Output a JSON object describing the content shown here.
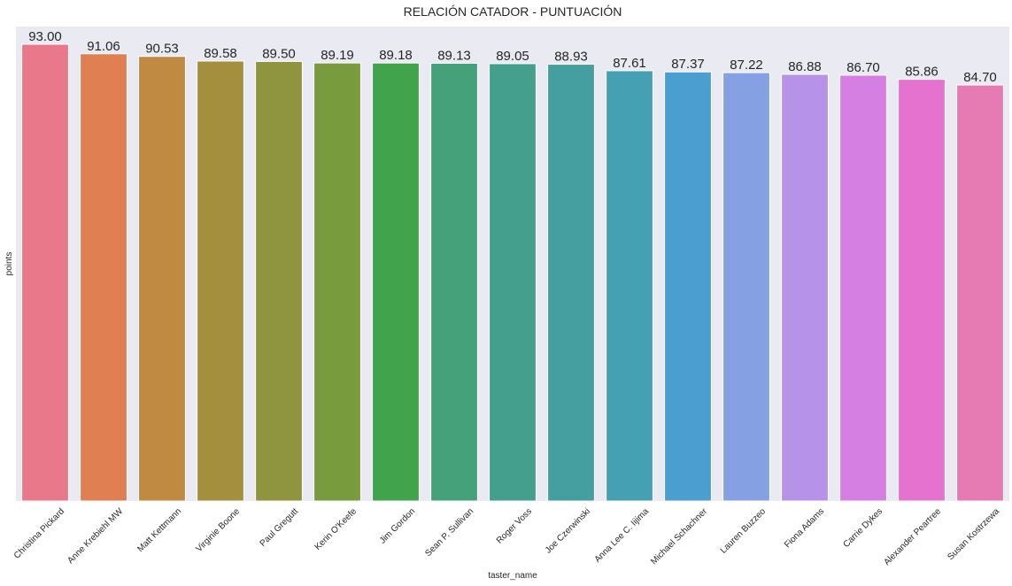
{
  "chart_data": {
    "type": "bar",
    "title": "RELACIÓN CATADOR - PUNTUACIÓN",
    "xlabel": "taster_name",
    "ylabel": "points",
    "ylim": [
      0,
      93.0
    ],
    "grid": false,
    "background_color": "#eaeaf2",
    "categories": [
      "Christina Pickard",
      "Anne Krebiehl MW",
      "Matt Kettmann",
      "Virginie Boone",
      "Paul Gregutt",
      "Kerin O'Keefe",
      "Jim Gordon",
      "Sean P. Sullivan",
      "Roger Voss",
      "Joe Czerwinski",
      "Anna Lee C. Iijima",
      "Michael Schachner",
      "Lauren Buzzeo",
      "Fiona Adams",
      "Carrie Dykes",
      "Alexander Peartree",
      "Susan Kostrzewa"
    ],
    "values": [
      93.0,
      91.06,
      90.53,
      89.58,
      89.5,
      89.19,
      89.18,
      89.13,
      89.05,
      88.93,
      87.61,
      87.37,
      87.22,
      86.88,
      86.7,
      85.86,
      84.7
    ],
    "value_labels": [
      "93.00",
      "91.06",
      "90.53",
      "89.58",
      "89.50",
      "89.19",
      "89.18",
      "89.13",
      "89.05",
      "88.93",
      "87.61",
      "87.37",
      "87.22",
      "86.88",
      "86.70",
      "85.86",
      "84.70"
    ],
    "colors": [
      "#e8788a",
      "#e07f52",
      "#c08a42",
      "#a48f3e",
      "#8f953e",
      "#789b3e",
      "#42a34d",
      "#44a17a",
      "#44a08c",
      "#459e9f",
      "#46a0b4",
      "#4a9fd0",
      "#85a0e3",
      "#b693e9",
      "#d57fe2",
      "#e672d0",
      "#e67bb4"
    ]
  }
}
